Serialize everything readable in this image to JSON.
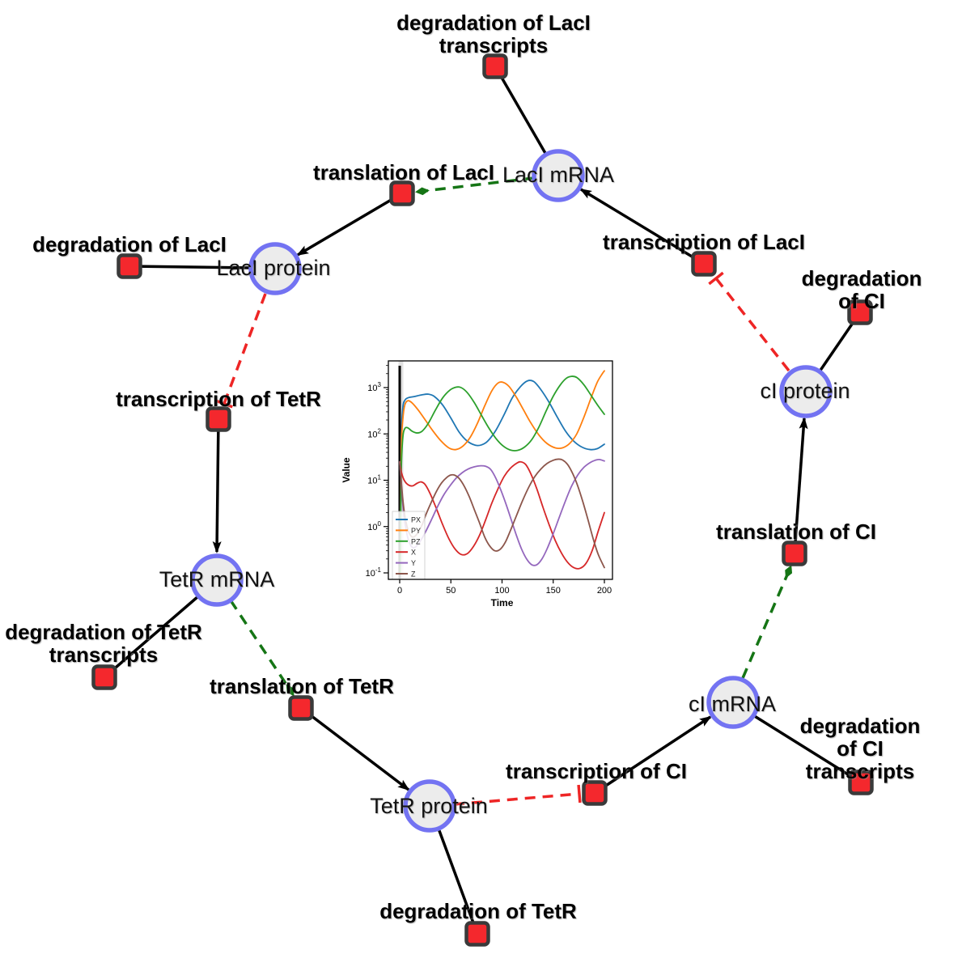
{
  "diagram": {
    "species": [
      {
        "id": "laci-mrna",
        "label": "LacI mRNA"
      },
      {
        "id": "laci-protein",
        "label": "LacI protein"
      },
      {
        "id": "tetr-mrna",
        "label": "TetR mRNA"
      },
      {
        "id": "tetr-protein",
        "label": "TetR protein"
      },
      {
        "id": "ci-mrna",
        "label": "cI mRNA"
      },
      {
        "id": "ci-protein",
        "label": "cI protein"
      }
    ],
    "reactions": [
      {
        "id": "deg-laci-transcripts",
        "label": "degradation of LacI\ntranscripts"
      },
      {
        "id": "translation-laci",
        "label": "translation of LacI"
      },
      {
        "id": "deg-laci",
        "label": "degradation of LacI"
      },
      {
        "id": "transcription-laci",
        "label": "transcription of LacI"
      },
      {
        "id": "deg-ci",
        "label": "degradation of CI"
      },
      {
        "id": "transcription-tetr",
        "label": "transcription of TetR"
      },
      {
        "id": "translation-ci",
        "label": "translation of CI"
      },
      {
        "id": "deg-tetr-transcripts",
        "label": "degradation of TetR\ntranscripts"
      },
      {
        "id": "translation-tetr",
        "label": "translation of TetR"
      },
      {
        "id": "transcription-ci",
        "label": "transcription of CI"
      },
      {
        "id": "deg-ci-transcripts",
        "label": "degradation of CI\ntranscripts"
      },
      {
        "id": "deg-tetr",
        "label": "degradation of TetR"
      }
    ],
    "colors": {
      "species_fill": "#ececec",
      "species_border": "#7373f2",
      "reaction_fill": "#f4282d",
      "reaction_border": "#3a3a3a",
      "consumption_edge": "#000000",
      "modifier_edge": "#157515",
      "inhibition_edge": "#ee2525"
    }
  },
  "chart_data": {
    "type": "line",
    "title": "",
    "xlabel": "Time",
    "ylabel": "Value",
    "xlim": [
      0,
      200
    ],
    "yscale": "log",
    "ylim": [
      0.1,
      3700
    ],
    "x_ticks": [
      0,
      50,
      100,
      150,
      200
    ],
    "y_tick_exponents": [
      3,
      2,
      1,
      0,
      -1
    ],
    "grid": false,
    "legend_position": "lower left",
    "event_line_x": 0,
    "series": [
      {
        "name": "PX",
        "color": "#1f77b4",
        "points": [
          [
            0.5,
            0.1
          ],
          [
            1.5,
            60
          ],
          [
            3,
            350
          ],
          [
            5,
            530
          ],
          [
            8,
            600
          ],
          [
            14,
            640
          ],
          [
            22,
            700
          ],
          [
            28,
            720
          ],
          [
            34,
            640
          ],
          [
            42,
            420
          ],
          [
            50,
            220
          ],
          [
            58,
            110
          ],
          [
            66,
            70
          ],
          [
            74,
            57
          ],
          [
            80,
            58
          ],
          [
            86,
            70
          ],
          [
            94,
            120
          ],
          [
            102,
            260
          ],
          [
            110,
            600
          ],
          [
            118,
            1050
          ],
          [
            125,
            1400
          ],
          [
            131,
            1350
          ],
          [
            138,
            900
          ],
          [
            146,
            480
          ],
          [
            154,
            230
          ],
          [
            162,
            115
          ],
          [
            170,
            70
          ],
          [
            178,
            52
          ],
          [
            186,
            46
          ],
          [
            193,
            48
          ],
          [
            200,
            60
          ]
        ]
      },
      {
        "name": "PY",
        "color": "#ff7f0e",
        "points": [
          [
            0.5,
            0.1
          ],
          [
            1.5,
            40
          ],
          [
            3,
            200
          ],
          [
            5,
            420
          ],
          [
            8,
            520
          ],
          [
            12,
            470
          ],
          [
            18,
            330
          ],
          [
            25,
            200
          ],
          [
            32,
            120
          ],
          [
            40,
            72
          ],
          [
            48,
            50
          ],
          [
            55,
            46
          ],
          [
            62,
            55
          ],
          [
            69,
            85
          ],
          [
            76,
            170
          ],
          [
            83,
            400
          ],
          [
            90,
            850
          ],
          [
            96,
            1250
          ],
          [
            101,
            1300
          ],
          [
            107,
            1050
          ],
          [
            114,
            620
          ],
          [
            121,
            330
          ],
          [
            128,
            175
          ],
          [
            136,
            95
          ],
          [
            144,
            62
          ],
          [
            152,
            50
          ],
          [
            159,
            50
          ],
          [
            166,
            62
          ],
          [
            173,
            100
          ],
          [
            180,
            230
          ],
          [
            187,
            600
          ],
          [
            193,
            1300
          ],
          [
            198,
            2000
          ],
          [
            200,
            2300
          ]
        ]
      },
      {
        "name": "PZ",
        "color": "#2ca02c",
        "points": [
          [
            0.5,
            0.1
          ],
          [
            1.5,
            15
          ],
          [
            3,
            80
          ],
          [
            5,
            130
          ],
          [
            8,
            135
          ],
          [
            12,
            115
          ],
          [
            17,
            105
          ],
          [
            22,
            115
          ],
          [
            28,
            170
          ],
          [
            35,
            330
          ],
          [
            42,
            600
          ],
          [
            49,
            880
          ],
          [
            55,
            1020
          ],
          [
            60,
            1000
          ],
          [
            66,
            780
          ],
          [
            73,
            470
          ],
          [
            80,
            250
          ],
          [
            87,
            135
          ],
          [
            94,
            80
          ],
          [
            101,
            55
          ],
          [
            108,
            45
          ],
          [
            115,
            44
          ],
          [
            122,
            52
          ],
          [
            129,
            75
          ],
          [
            136,
            140
          ],
          [
            143,
            310
          ],
          [
            150,
            650
          ],
          [
            157,
            1150
          ],
          [
            163,
            1600
          ],
          [
            168,
            1750
          ],
          [
            173,
            1650
          ],
          [
            180,
            1150
          ],
          [
            187,
            680
          ],
          [
            194,
            400
          ],
          [
            200,
            265
          ]
        ]
      },
      {
        "name": "X",
        "color": "#d62728",
        "points": [
          [
            0,
            25
          ],
          [
            2,
            14
          ],
          [
            5,
            9.5
          ],
          [
            9,
            7.8
          ],
          [
            13,
            7.6
          ],
          [
            17,
            8.6
          ],
          [
            21,
            9.2
          ],
          [
            25,
            8
          ],
          [
            30,
            5
          ],
          [
            36,
            2.4
          ],
          [
            42,
            1.1
          ],
          [
            48,
            0.55
          ],
          [
            54,
            0.33
          ],
          [
            60,
            0.25
          ],
          [
            66,
            0.26
          ],
          [
            72,
            0.37
          ],
          [
            78,
            0.65
          ],
          [
            84,
            1.4
          ],
          [
            90,
            3.2
          ],
          [
            96,
            6.5
          ],
          [
            102,
            12
          ],
          [
            108,
            18
          ],
          [
            114,
            23
          ],
          [
            118,
            25
          ],
          [
            123,
            22
          ],
          [
            128,
            14
          ],
          [
            134,
            6.5
          ],
          [
            140,
            2.6
          ],
          [
            146,
            1.1
          ],
          [
            152,
            0.5
          ],
          [
            158,
            0.27
          ],
          [
            164,
            0.17
          ],
          [
            170,
            0.13
          ],
          [
            176,
            0.125
          ],
          [
            182,
            0.16
          ],
          [
            188,
            0.3
          ],
          [
            194,
            0.8
          ],
          [
            200,
            2
          ]
        ]
      },
      {
        "name": "Y",
        "color": "#9467bd",
        "points": [
          [
            0,
            25
          ],
          [
            2,
            6
          ],
          [
            4,
            1.8
          ],
          [
            7,
            0.7
          ],
          [
            10,
            0.42
          ],
          [
            13,
            0.35
          ],
          [
            16,
            0.37
          ],
          [
            20,
            0.48
          ],
          [
            25,
            0.75
          ],
          [
            31,
            1.4
          ],
          [
            37,
            2.7
          ],
          [
            43,
            4.8
          ],
          [
            49,
            7.5
          ],
          [
            55,
            11
          ],
          [
            61,
            14.5
          ],
          [
            67,
            17.5
          ],
          [
            73,
            19.5
          ],
          [
            79,
            20.5
          ],
          [
            84,
            20
          ],
          [
            89,
            17
          ],
          [
            94,
            11
          ],
          [
            99,
            6
          ],
          [
            104,
            3
          ],
          [
            109,
            1.4
          ],
          [
            114,
            0.65
          ],
          [
            119,
            0.33
          ],
          [
            124,
            0.2
          ],
          [
            129,
            0.15
          ],
          [
            134,
            0.15
          ],
          [
            139,
            0.2
          ],
          [
            144,
            0.33
          ],
          [
            150,
            0.7
          ],
          [
            156,
            1.6
          ],
          [
            162,
            3.6
          ],
          [
            168,
            7.5
          ],
          [
            174,
            13
          ],
          [
            180,
            19
          ],
          [
            186,
            24
          ],
          [
            191,
            27
          ],
          [
            195,
            28
          ],
          [
            200,
            26
          ]
        ]
      },
      {
        "name": "Z",
        "color": "#8c564b",
        "points": [
          [
            0,
            25
          ],
          [
            2,
            7
          ],
          [
            4,
            2.5
          ],
          [
            6,
            1.3
          ],
          [
            9,
            0.75
          ],
          [
            12,
            0.6
          ],
          [
            15,
            0.62
          ],
          [
            18,
            0.75
          ],
          [
            22,
            1.1
          ],
          [
            26,
            1.9
          ],
          [
            31,
            3.4
          ],
          [
            36,
            5.8
          ],
          [
            41,
            8.8
          ],
          [
            46,
            11.5
          ],
          [
            50,
            13
          ],
          [
            54,
            12.8
          ],
          [
            58,
            11
          ],
          [
            63,
            7.5
          ],
          [
            68,
            4.4
          ],
          [
            73,
            2.3
          ],
          [
            78,
            1.2
          ],
          [
            83,
            0.6
          ],
          [
            88,
            0.38
          ],
          [
            93,
            0.3
          ],
          [
            98,
            0.32
          ],
          [
            103,
            0.45
          ],
          [
            108,
            0.8
          ],
          [
            114,
            1.7
          ],
          [
            120,
            3.6
          ],
          [
            126,
            7
          ],
          [
            132,
            12
          ],
          [
            138,
            17.5
          ],
          [
            144,
            23
          ],
          [
            150,
            27
          ],
          [
            155,
            28.5
          ],
          [
            159,
            27.5
          ],
          [
            164,
            22
          ],
          [
            169,
            14
          ],
          [
            174,
            7.5
          ],
          [
            179,
            3.4
          ],
          [
            184,
            1.4
          ],
          [
            189,
            0.55
          ],
          [
            194,
            0.25
          ],
          [
            200,
            0.13
          ]
        ]
      }
    ]
  }
}
